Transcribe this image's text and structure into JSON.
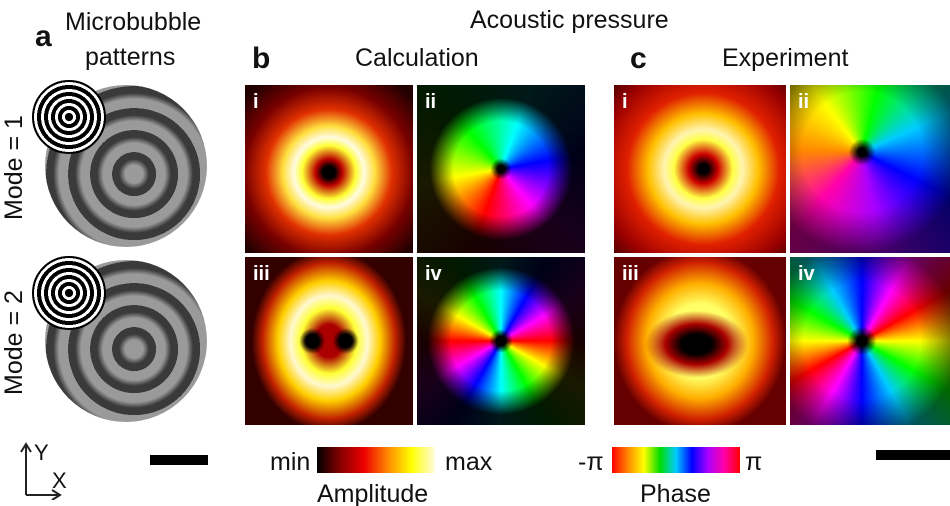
{
  "panel_a": {
    "label": "a",
    "title": [
      "Microbubble",
      "patterns"
    ],
    "rows": [
      "Mode = 1",
      "Mode = 2"
    ],
    "axes": {
      "y": "Y",
      "x": "X"
    }
  },
  "header": "Acoustic pressure",
  "panel_b": {
    "label": "b",
    "title": "Calculation",
    "tiles": [
      "i",
      "ii",
      "iii",
      "iv"
    ]
  },
  "panel_c": {
    "label": "c",
    "title": "Experiment",
    "tiles": [
      "i",
      "ii",
      "iii",
      "iv"
    ]
  },
  "amplitude_bar": {
    "min": "min",
    "max": "max",
    "title": "Amplitude"
  },
  "phase_bar": {
    "min": "-π",
    "max": "π",
    "title": "Phase"
  }
}
